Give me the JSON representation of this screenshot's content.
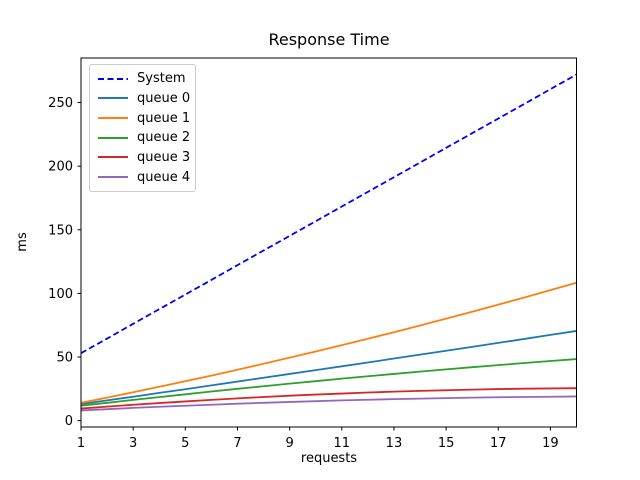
{
  "figure": {
    "title": "Response Time",
    "x_axis_label": "requests",
    "y_axis_label": "ms"
  },
  "chart_data": {
    "type": "line",
    "title": "Response Time",
    "xlabel": "requests",
    "ylabel": "ms",
    "xlim": [
      1,
      20
    ],
    "ylim": [
      -5,
      285
    ],
    "xticks": [
      1,
      3,
      5,
      7,
      9,
      11,
      13,
      15,
      17,
      19
    ],
    "yticks": [
      0,
      50,
      100,
      150,
      200,
      250
    ],
    "grid": false,
    "legend_position": "upper left",
    "background_color": "#ffffff",
    "spine_color": "#000000",
    "x": [
      1,
      2,
      3,
      4,
      5,
      6,
      7,
      8,
      9,
      10,
      11,
      12,
      13,
      14,
      15,
      16,
      17,
      18,
      19,
      20
    ],
    "series": [
      {
        "name": "System",
        "color": "#0000ff",
        "dash": "dashed",
        "values": [
          53.0,
          64.5,
          76.1,
          87.6,
          99.1,
          110.6,
          122.2,
          133.7,
          145.2,
          156.7,
          168.3,
          179.8,
          191.3,
          202.8,
          214.4,
          225.9,
          237.4,
          248.9,
          260.5,
          272.0
        ]
      },
      {
        "name": "queue 0",
        "color": "#1f77b4",
        "dash": "solid",
        "values": [
          13.0,
          15.9,
          18.8,
          21.8,
          24.7,
          27.7,
          30.7,
          33.7,
          36.7,
          39.7,
          42.7,
          45.7,
          48.8,
          51.9,
          54.9,
          58.0,
          61.1,
          64.2,
          67.4,
          70.5
        ]
      },
      {
        "name": "queue 1",
        "color": "#ff7f0e",
        "dash": "solid",
        "values": [
          14.0,
          18.1,
          22.3,
          26.6,
          31.0,
          35.4,
          40.0,
          44.7,
          49.5,
          54.3,
          59.3,
          64.4,
          69.5,
          74.8,
          80.2,
          85.6,
          91.2,
          96.8,
          102.6,
          108.4
        ]
      },
      {
        "name": "queue 2",
        "color": "#2ca02c",
        "dash": "solid",
        "values": [
          11.7,
          14.0,
          16.3,
          18.5,
          20.7,
          22.9,
          25.0,
          27.0,
          29.1,
          31.0,
          33.0,
          34.9,
          36.7,
          38.5,
          40.3,
          42.0,
          43.6,
          45.3,
          46.9,
          48.4
        ]
      },
      {
        "name": "queue 3",
        "color": "#d62728",
        "dash": "solid",
        "values": [
          9.5,
          11.0,
          12.5,
          13.8,
          15.1,
          16.3,
          17.5,
          18.6,
          19.6,
          20.5,
          21.3,
          22.1,
          22.8,
          23.4,
          23.9,
          24.4,
          24.8,
          25.1,
          25.3,
          25.5
        ]
      },
      {
        "name": "queue 4",
        "color": "#9467bd",
        "dash": "solid",
        "values": [
          8.0,
          9.0,
          10.0,
          10.9,
          11.7,
          12.5,
          13.3,
          14.0,
          14.7,
          15.3,
          15.9,
          16.4,
          16.9,
          17.3,
          17.7,
          18.1,
          18.4,
          18.6,
          18.8,
          19.0
        ]
      }
    ]
  }
}
